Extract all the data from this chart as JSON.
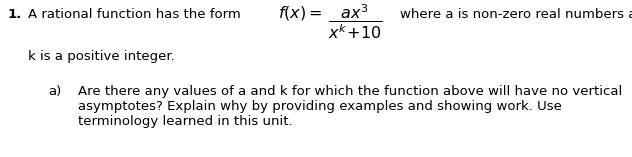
{
  "background_color": "#ffffff",
  "fig_width": 6.32,
  "fig_height": 1.57,
  "dpi": 100,
  "text_color": "#000000",
  "font_size": 9.5,
  "formula_font_size": 11.5,
  "line1_num": "1.",
  "line1_pre": "A rational function has the form",
  "line1_post": "where a is non-zero real numbers and",
  "line2": "k is a positive integer.",
  "part_label": "a)",
  "part_line1": "Are there any values of a and k for which the function above will have no vertical",
  "part_line2": "asymptotes? Explain why by providing examples and showing work. Use",
  "part_line3": "terminology learned in this unit.",
  "formula": "$\\dfrac{ax^3}{x^k\\!+\\!10}$",
  "fx_eq": "$f(x) =$"
}
